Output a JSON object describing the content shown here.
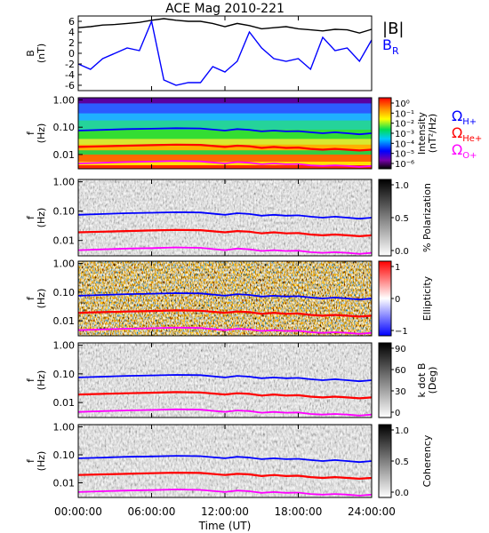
{
  "title": "ACE Mag 2010-221",
  "x_axis": {
    "label": "Time (UT)",
    "ticks": [
      "00:00:00",
      "06:00:00",
      "12:00:00",
      "18:00:00",
      "24:00:00"
    ]
  },
  "legend": {
    "b_total": "|B|",
    "b_r_main": "B",
    "b_r_sub": "R",
    "omega": "Ω",
    "h_sub": "H+",
    "he_sub": "He+",
    "o_sub": "O+"
  },
  "colors": {
    "b_total": "#000000",
    "b_r": "#0000ff",
    "omega_h": "#0000ff",
    "omega_he": "#ff0000",
    "omega_o": "#ff00ff"
  },
  "panels": [
    {
      "ylabel_main": "B",
      "ylabel_sub": "(nT)",
      "yticks": [
        "6",
        "4",
        "2",
        "0",
        "-2",
        "-4",
        "-6"
      ],
      "cbar": null
    },
    {
      "ylabel_main": "f",
      "ylabel_sub": "(Hz)",
      "yticks": [
        "1.00",
        "0.10",
        "0.01"
      ],
      "cbar": {
        "type": "rainbow",
        "label1": "Intensity",
        "label2": "(nT²/Hz)",
        "ticks": [
          "10⁰",
          "10⁻¹",
          "10⁻²",
          "10⁻³",
          "10⁻⁴",
          "10⁻⁵",
          "10⁻⁶"
        ]
      }
    },
    {
      "ylabel_main": "f",
      "ylabel_sub": "(Hz)",
      "yticks": [
        "1.00",
        "0.10",
        "0.01"
      ],
      "cbar": {
        "type": "gray",
        "label1": "% Polarization",
        "label2": "",
        "ticks": [
          "1.0",
          "0.5",
          "0.0"
        ]
      }
    },
    {
      "ylabel_main": "f",
      "ylabel_sub": "(Hz)",
      "yticks": [
        "1.00",
        "0.10",
        "0.01"
      ],
      "cbar": {
        "type": "bwr",
        "label1": "Ellipticity",
        "label2": "",
        "ticks": [
          "1",
          "0",
          "−1"
        ]
      }
    },
    {
      "ylabel_main": "f",
      "ylabel_sub": "(Hz)",
      "yticks": [
        "1.00",
        "0.10",
        "0.01"
      ],
      "cbar": {
        "type": "gray",
        "label1": "k dot B",
        "label2": "(Deg)",
        "ticks": [
          "90",
          "60",
          "30",
          "0"
        ]
      }
    },
    {
      "ylabel_main": "f",
      "ylabel_sub": "(Hz)",
      "yticks": [
        "1.00",
        "0.10",
        "0.01"
      ],
      "cbar": {
        "type": "gray",
        "label1": "Coherency",
        "label2": "",
        "ticks": [
          "1.0",
          "0.5",
          "0.0"
        ]
      }
    }
  ],
  "chart_data": {
    "type": "line",
    "x_unit": "hours UT",
    "xlim": [
      0,
      24
    ],
    "series": [
      {
        "name": "|B|",
        "panel": 1,
        "x": [
          0,
          1,
          2,
          3,
          4,
          5,
          6,
          7,
          8,
          9,
          10,
          11,
          12,
          13,
          14,
          15,
          16,
          17,
          18,
          19,
          20,
          21,
          22,
          23,
          24
        ],
        "values": [
          4.8,
          5.0,
          5.3,
          5.4,
          5.6,
          5.8,
          6.2,
          6.5,
          6.2,
          6.0,
          6.0,
          5.6,
          5.0,
          5.6,
          5.2,
          4.6,
          4.8,
          5.0,
          4.6,
          4.4,
          4.2,
          4.5,
          4.4,
          3.8,
          4.5
        ]
      },
      {
        "name": "B_R",
        "panel": 1,
        "x": [
          0,
          1,
          2,
          3,
          4,
          5,
          6,
          7,
          8,
          9,
          10,
          11,
          12,
          13,
          14,
          15,
          16,
          17,
          18,
          19,
          20,
          21,
          22,
          23,
          24
        ],
        "values": [
          -2.0,
          -3.0,
          -1.0,
          0.0,
          1.0,
          0.5,
          6.0,
          -5.0,
          -6.0,
          -5.5,
          -5.5,
          -2.5,
          -3.5,
          -1.5,
          4.0,
          1.0,
          -1.0,
          -1.5,
          -1.0,
          -3.0,
          3.0,
          0.5,
          1.0,
          -1.5,
          2.5
        ]
      },
      {
        "name": "Ω_H+",
        "panel": "2-6",
        "x": [
          0,
          2,
          4,
          6,
          8,
          10,
          12,
          13,
          14,
          15,
          16,
          17,
          18,
          19,
          20,
          21,
          22,
          23,
          24
        ],
        "values": [
          0.075,
          0.08,
          0.085,
          0.088,
          0.092,
          0.09,
          0.075,
          0.085,
          0.08,
          0.07,
          0.075,
          0.07,
          0.072,
          0.065,
          0.06,
          0.065,
          0.06,
          0.055,
          0.06
        ]
      },
      {
        "name": "Ω_He+",
        "panel": "2-6",
        "x": [
          0,
          2,
          4,
          6,
          8,
          10,
          12,
          13,
          14,
          15,
          16,
          17,
          18,
          19,
          20,
          21,
          22,
          23,
          24
        ],
        "values": [
          0.019,
          0.02,
          0.021,
          0.022,
          0.023,
          0.0225,
          0.019,
          0.021,
          0.02,
          0.0175,
          0.019,
          0.0175,
          0.018,
          0.016,
          0.015,
          0.016,
          0.015,
          0.014,
          0.015
        ]
      },
      {
        "name": "Ω_O+",
        "panel": "2-6",
        "x": [
          0,
          2,
          4,
          6,
          8,
          10,
          12,
          13,
          14,
          15,
          16,
          17,
          18,
          19,
          20,
          21,
          22,
          23,
          24
        ],
        "values": [
          0.0047,
          0.005,
          0.0053,
          0.0055,
          0.0058,
          0.0056,
          0.0047,
          0.0053,
          0.005,
          0.0044,
          0.0047,
          0.0044,
          0.0045,
          0.004,
          0.0038,
          0.004,
          0.0038,
          0.0035,
          0.0038
        ]
      }
    ],
    "panel1_ylim": [
      -7,
      7
    ],
    "freq_ylim_hz": [
      0.003,
      1.2
    ],
    "freq_scale": "log"
  }
}
